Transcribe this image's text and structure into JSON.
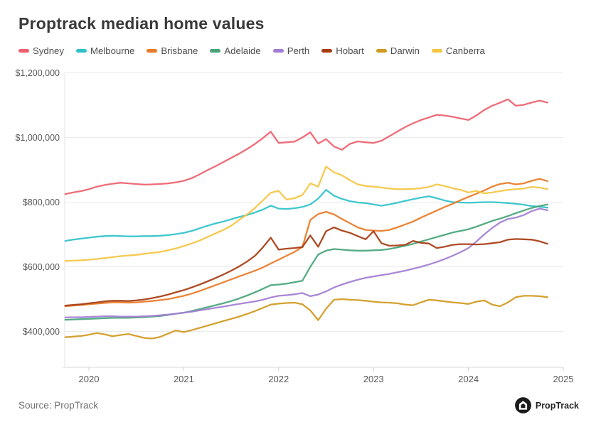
{
  "title": "Proptrack median home values",
  "footer": {
    "source": "Source: PropTrack",
    "logo_text": "PropTrack"
  },
  "chart_data": {
    "type": "line",
    "title": "Proptrack median home values",
    "x_unit": "month",
    "x_start": "2019-10",
    "x_end": "2024-11",
    "x_tick_labels": [
      "2020",
      "2021",
      "2022",
      "2023",
      "2024",
      "2025"
    ],
    "y_ticks": [
      1200000,
      1000000,
      800000,
      600000,
      400000
    ],
    "y_tick_labels": [
      "$1,200,000",
      "$1,000,000",
      "$800,000",
      "$600,000",
      "$400,000"
    ],
    "ylim": [
      290000,
      1200000
    ],
    "grid": "horizontal-only",
    "legend_position": "top",
    "values_unit": "AUD thousands",
    "colors": {
      "grid": "#ebebeb",
      "axis_line": "#d8d8d8",
      "tick": "#cfcfcf",
      "label_text": "#58585a"
    },
    "series": [
      {
        "name": "Sydney",
        "color": "#ed5f6d",
        "values": [
          825,
          830,
          834,
          840,
          848,
          853,
          857,
          860,
          858,
          856,
          854,
          855,
          856,
          858,
          861,
          866,
          874,
          886,
          899,
          911,
          924,
          937,
          950,
          964,
          980,
          998,
          1018,
          983,
          985,
          987,
          1000,
          1016,
          981,
          995,
          972,
          962,
          980,
          988,
          985,
          983,
          990,
          1004,
          1018,
          1032,
          1044,
          1054,
          1062,
          1070,
          1068,
          1064,
          1059,
          1054,
          1068,
          1085,
          1098,
          1108,
          1118,
          1098,
          1101,
          1108,
          1114,
          1108
        ]
      },
      {
        "name": "Melbourne",
        "color": "#30c2ca",
        "values": [
          680,
          684,
          687,
          690,
          693,
          695,
          696,
          695,
          694,
          694,
          695,
          695,
          696,
          698,
          701,
          705,
          711,
          719,
          727,
          734,
          740,
          747,
          754,
          760,
          768,
          777,
          789,
          780,
          779,
          781,
          785,
          793,
          811,
          838,
          820,
          810,
          803,
          799,
          797,
          793,
          789,
          793,
          798,
          804,
          809,
          814,
          818,
          812,
          805,
          800,
          799,
          798,
          799,
          800,
          800,
          799,
          797,
          795,
          792,
          788,
          786,
          783
        ]
      },
      {
        "name": "Brisbane",
        "color": "#e97a26",
        "values": [
          478,
          480,
          482,
          484,
          486,
          488,
          490,
          490,
          489,
          490,
          492,
          494,
          497,
          500,
          505,
          510,
          517,
          525,
          534,
          543,
          552,
          561,
          570,
          579,
          588,
          598,
          610,
          622,
          634,
          646,
          661,
          745,
          763,
          770,
          762,
          748,
          735,
          722,
          714,
          712,
          711,
          714,
          722,
          731,
          740,
          752,
          763,
          774,
          785,
          795,
          806,
          816,
          826,
          836,
          848,
          856,
          860,
          855,
          858,
          866,
          872,
          865
        ]
      },
      {
        "name": "Adelaide",
        "color": "#47a479",
        "values": [
          436,
          437,
          438,
          439,
          440,
          441,
          442,
          442,
          442,
          443,
          444,
          446,
          448,
          451,
          455,
          458,
          463,
          469,
          475,
          481,
          487,
          494,
          502,
          511,
          521,
          532,
          543,
          545,
          548,
          552,
          557,
          600,
          638,
          650,
          655,
          653,
          651,
          650,
          650,
          651,
          652,
          655,
          660,
          665,
          671,
          678,
          685,
          692,
          699,
          706,
          711,
          716,
          724,
          733,
          742,
          749,
          757,
          766,
          774,
          782,
          788,
          793
        ]
      },
      {
        "name": "Perth",
        "color": "#a27dd4",
        "values": [
          443,
          444,
          444,
          445,
          446,
          447,
          447,
          446,
          446,
          446,
          447,
          448,
          450,
          452,
          455,
          458,
          461,
          465,
          469,
          473,
          477,
          481,
          485,
          489,
          493,
          498,
          505,
          510,
          512,
          515,
          519,
          509,
          514,
          524,
          536,
          545,
          553,
          560,
          566,
          570,
          574,
          578,
          583,
          588,
          594,
          600,
          607,
          615,
          624,
          634,
          645,
          658,
          678,
          700,
          720,
          737,
          748,
          752,
          760,
          772,
          780,
          775
        ]
      },
      {
        "name": "Hobart",
        "color": "#a63c11",
        "values": [
          480,
          482,
          484,
          487,
          490,
          493,
          495,
          495,
          494,
          496,
          499,
          503,
          508,
          514,
          521,
          528,
          536,
          545,
          555,
          565,
          576,
          588,
          601,
          616,
          634,
          660,
          690,
          653,
          656,
          658,
          661,
          697,
          662,
          710,
          722,
          712,
          705,
          695,
          685,
          710,
          673,
          665,
          666,
          668,
          680,
          674,
          672,
          658,
          662,
          668,
          670,
          670,
          669,
          670,
          673,
          676,
          684,
          686,
          685,
          684,
          679,
          671
        ]
      },
      {
        "name": "Darwin",
        "color": "#d0991f",
        "values": [
          382,
          384,
          386,
          390,
          395,
          391,
          385,
          389,
          392,
          386,
          380,
          378,
          383,
          393,
          403,
          398,
          404,
          411,
          418,
          425,
          432,
          439,
          446,
          454,
          463,
          473,
          483,
          486,
          488,
          489,
          484,
          465,
          435,
          470,
          498,
          500,
          498,
          497,
          495,
          492,
          490,
          489,
          487,
          483,
          481,
          490,
          498,
          496,
          493,
          490,
          488,
          485,
          492,
          496,
          483,
          478,
          490,
          506,
          510,
          510,
          509,
          506
        ]
      },
      {
        "name": "Canberra",
        "color": "#f4c642",
        "values": [
          618,
          619,
          620,
          622,
          624,
          627,
          630,
          633,
          635,
          637,
          640,
          643,
          646,
          651,
          657,
          664,
          672,
          681,
          692,
          703,
          714,
          727,
          745,
          762,
          782,
          805,
          829,
          835,
          808,
          812,
          822,
          858,
          848,
          910,
          892,
          883,
          868,
          855,
          850,
          848,
          845,
          842,
          840,
          840,
          841,
          843,
          847,
          855,
          850,
          843,
          838,
          830,
          835,
          827,
          830,
          834,
          838,
          840,
          842,
          847,
          845,
          840
        ]
      }
    ]
  }
}
